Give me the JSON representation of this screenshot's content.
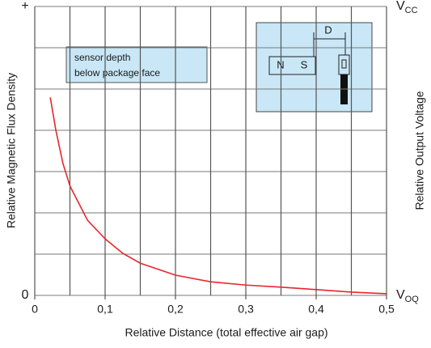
{
  "chart_data": {
    "type": "line",
    "xlabel": "Relative Distance (total effective air gap)",
    "ylabel": "Relative Magnetic Flux Density",
    "y2label": "Relative Output Voltage",
    "x": [
      0.022,
      0.03,
      0.04,
      0.05,
      0.075,
      0.1,
      0.125,
      0.15,
      0.2,
      0.25,
      0.3,
      0.35,
      0.4,
      0.45,
      0.5
    ],
    "series": [
      {
        "color": "#e8262b",
        "values": [
          4.8,
          4.0,
          3.2,
          2.65,
          1.82,
          1.37,
          1.02,
          0.78,
          0.49,
          0.33,
          0.25,
          0.2,
          0.14,
          0.08,
          0.04
        ]
      }
    ],
    "xlim": [
      0,
      0.5
    ],
    "xticks": [
      0,
      {
        "value": 0.1,
        "label": "0,1"
      },
      {
        "value": 0.2,
        "label": "0,2"
      },
      {
        "value": 0.3,
        "label": "0,3"
      },
      {
        "value": 0.4,
        "label": "0,4"
      },
      {
        "value": 0.5,
        "label": "0,5"
      }
    ],
    "xgrid": [
      0,
      0.05,
      0.1,
      0.15,
      0.2,
      0.25,
      0.3,
      0.35,
      0.4,
      0.45,
      0.5
    ],
    "ylim": [
      0,
      7
    ],
    "yticks": [
      0,
      {
        "value": 7,
        "label": "+"
      }
    ],
    "ygrid": [
      0,
      1,
      2,
      3,
      4,
      5,
      6,
      7
    ],
    "y2ticks": [
      {
        "value": 0,
        "label": "V",
        "subscript": "OQ"
      },
      {
        "value": 7,
        "label": "V",
        "subscript": "CC"
      }
    ],
    "annotations": [
      "sensor depth",
      "below package face"
    ],
    "inset": {
      "dimension": "D",
      "magnet_north": "N",
      "magnet_south": "S"
    }
  }
}
